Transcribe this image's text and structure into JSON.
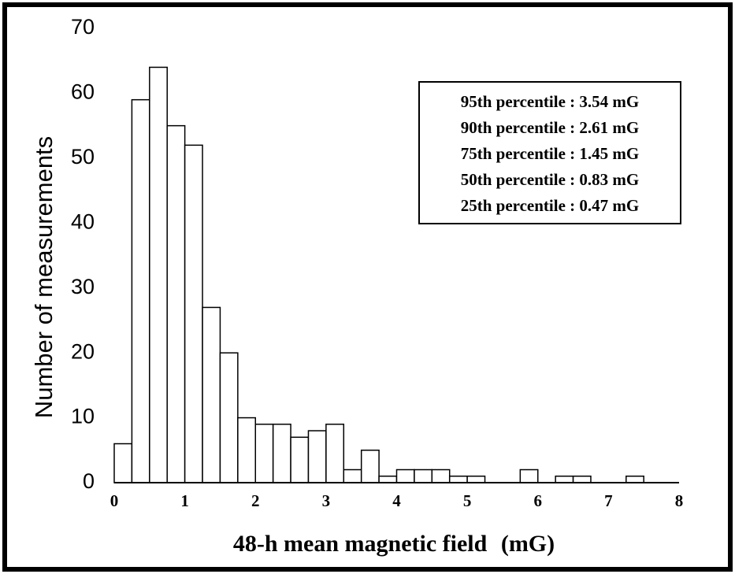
{
  "chart_data": {
    "type": "bar",
    "xlabel": "48-h mean magnetic field",
    "xlabel_unit": "(mG)",
    "ylabel": "Number of measurements",
    "xlim": [
      0,
      8
    ],
    "ylim": [
      0,
      70
    ],
    "x_ticks": [
      "0",
      "1",
      "2",
      "3",
      "4",
      "5",
      "6",
      "7",
      "8"
    ],
    "y_ticks": [
      "0",
      "10",
      "20",
      "30",
      "40",
      "50",
      "60",
      "70"
    ],
    "bin_width": 0.25,
    "bins": [
      {
        "start": 0.0,
        "value": 6
      },
      {
        "start": 0.25,
        "value": 59
      },
      {
        "start": 0.5,
        "value": 64
      },
      {
        "start": 0.75,
        "value": 55
      },
      {
        "start": 1.0,
        "value": 52
      },
      {
        "start": 1.25,
        "value": 27
      },
      {
        "start": 1.5,
        "value": 20
      },
      {
        "start": 1.75,
        "value": 10
      },
      {
        "start": 2.0,
        "value": 9
      },
      {
        "start": 2.25,
        "value": 9
      },
      {
        "start": 2.5,
        "value": 7
      },
      {
        "start": 2.75,
        "value": 8
      },
      {
        "start": 3.0,
        "value": 9
      },
      {
        "start": 3.25,
        "value": 2
      },
      {
        "start": 3.5,
        "value": 5
      },
      {
        "start": 3.75,
        "value": 1
      },
      {
        "start": 4.0,
        "value": 2
      },
      {
        "start": 4.25,
        "value": 2
      },
      {
        "start": 4.5,
        "value": 2
      },
      {
        "start": 4.75,
        "value": 1
      },
      {
        "start": 5.0,
        "value": 1
      },
      {
        "start": 5.75,
        "value": 2
      },
      {
        "start": 6.25,
        "value": 1
      },
      {
        "start": 6.5,
        "value": 1
      },
      {
        "start": 7.25,
        "value": 1
      }
    ],
    "legend": {
      "placement": "top-right",
      "entries": [
        "95th percentile : 3.54 mG",
        "90th percentile : 2.61 mG",
        "75th percentile : 1.45 mG",
        "50th percentile : 0.83 mG",
        "25th percentile : 0.47 mG"
      ]
    },
    "grid": false
  }
}
